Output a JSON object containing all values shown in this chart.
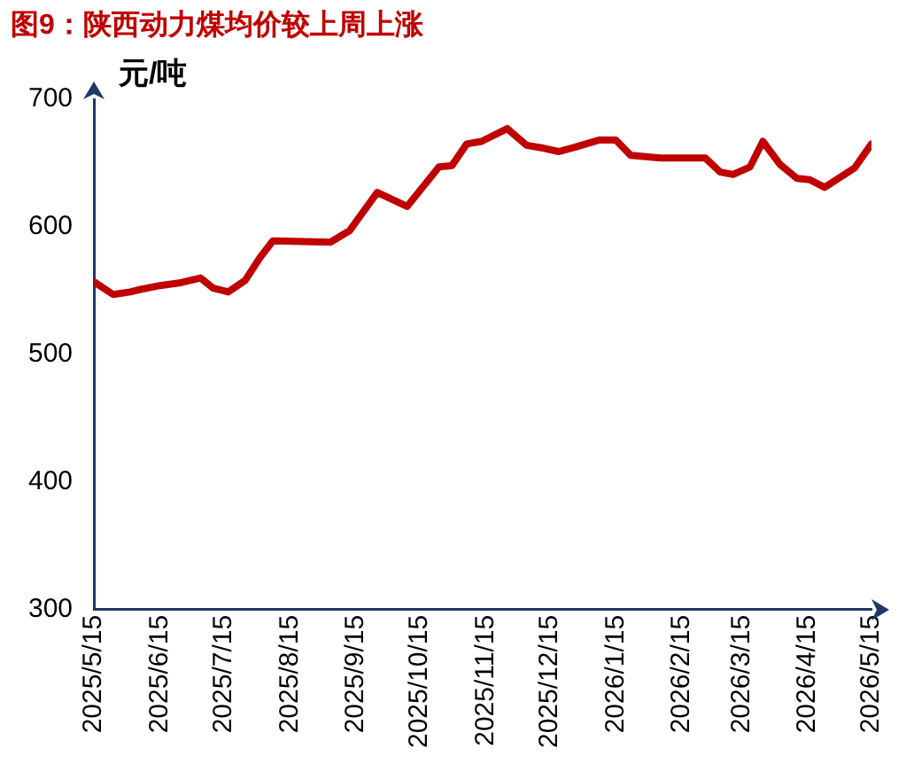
{
  "chart_data": {
    "type": "line",
    "title": "图9：陕西动力煤均价较上周上涨",
    "ylabel": "元/吨",
    "x": [
      "2025-05-15",
      "2025-05-24",
      "2025-06-01",
      "2025-06-06",
      "2025-06-15",
      "2025-06-24",
      "2025-07-04",
      "2025-07-10",
      "2025-07-17",
      "2025-07-25",
      "2025-08-01",
      "2025-08-07",
      "2025-09-03",
      "2025-09-12",
      "2025-09-25",
      "2025-10-09",
      "2025-10-24",
      "2025-10-30",
      "2025-11-06",
      "2025-11-13",
      "2025-11-25",
      "2025-12-04",
      "2025-12-11",
      "2025-12-19",
      "2025-12-26",
      "2026-01-07",
      "2026-01-15",
      "2026-01-22",
      "2026-02-05",
      "2026-02-26",
      "2026-03-05",
      "2026-03-11",
      "2026-03-19",
      "2026-03-25",
      "2026-04-02",
      "2026-04-10",
      "2026-04-16",
      "2026-04-23",
      "2026-05-07",
      "2026-05-15"
    ],
    "series": [
      {
        "color": "#c00000",
        "values": [
          557,
          547,
          549,
          551,
          554,
          556,
          560,
          552,
          549,
          558,
          576,
          589,
          588,
          597,
          627,
          616,
          647,
          648,
          665,
          667,
          677,
          664,
          662,
          659,
          662,
          668,
          668,
          656,
          654,
          654,
          643,
          641,
          647,
          667,
          649,
          638,
          637,
          631,
          646,
          665
        ]
      }
    ],
    "xlim": [
      "2025-05-15",
      "2026-05-15"
    ],
    "xticks": [
      {
        "value": "2025-05-15",
        "label": "2025/5/15"
      },
      {
        "value": "2025-06-15",
        "label": "2025/6/15"
      },
      {
        "value": "2025-07-15",
        "label": "2025/7/15"
      },
      {
        "value": "2025-08-15",
        "label": "2025/8/15"
      },
      {
        "value": "2025-09-15",
        "label": "2025/9/15"
      },
      {
        "value": "2025-10-15",
        "label": "2025/10/15"
      },
      {
        "value": "2025-11-15",
        "label": "2025/11/15"
      },
      {
        "value": "2025-12-15",
        "label": "2025/12/15"
      },
      {
        "value": "2026-01-15",
        "label": "2026/1/15"
      },
      {
        "value": "2026-02-15",
        "label": "2026/2/15"
      },
      {
        "value": "2026-03-15",
        "label": "2026/3/15"
      },
      {
        "value": "2026-04-15",
        "label": "2026/4/15"
      },
      {
        "value": "2026-05-15",
        "label": "2026/5/15"
      }
    ],
    "ylim": [
      300,
      700
    ],
    "yticks": [
      300,
      400,
      500,
      600,
      700
    ],
    "grid": false,
    "legend": false,
    "marker": "none",
    "line_style": "solid"
  }
}
